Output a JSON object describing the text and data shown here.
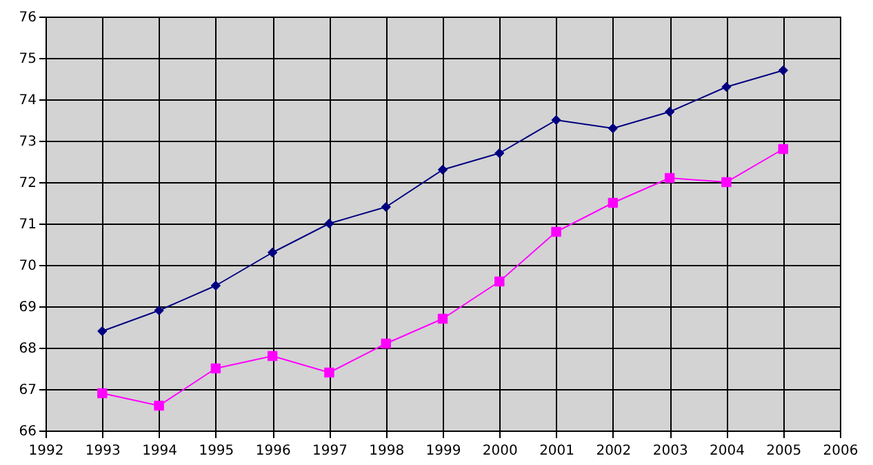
{
  "chart_data": {
    "type": "line",
    "x": [
      1993,
      1994,
      1995,
      1996,
      1997,
      1998,
      1999,
      2000,
      2001,
      2002,
      2003,
      2004,
      2005
    ],
    "series": [
      {
        "color": "#000080",
        "marker": "diamond",
        "values": [
          68.4,
          68.9,
          69.5,
          70.3,
          71.0,
          71.4,
          72.3,
          72.7,
          73.5,
          73.3,
          73.7,
          74.3,
          74.7
        ]
      },
      {
        "color": "#ff00ff",
        "marker": "square",
        "values": [
          66.9,
          66.6,
          67.5,
          67.8,
          67.4,
          68.1,
          68.7,
          69.6,
          70.8,
          71.5,
          72.1,
          72.0,
          72.8
        ]
      }
    ],
    "xlim": [
      1992,
      2006
    ],
    "xticks": [
      1992,
      1993,
      1994,
      1995,
      1996,
      1997,
      1998,
      1999,
      2000,
      2001,
      2002,
      2003,
      2004,
      2005,
      2006
    ],
    "ylim": [
      66,
      76
    ],
    "yticks": [
      66,
      67,
      68,
      69,
      70,
      71,
      72,
      73,
      74,
      75,
      76
    ],
    "grid": true,
    "line_style": "solid"
  }
}
